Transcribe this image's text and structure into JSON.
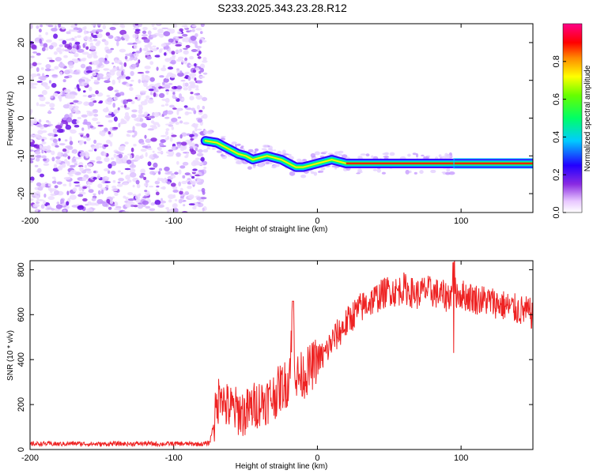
{
  "title": "S233.2025.343.23.28.R12",
  "chart_data": [
    {
      "type": "heatmap",
      "xlabel": "Height of straight line (km)",
      "ylabel": "Frequency (Hz)",
      "xlim": [
        -200,
        150
      ],
      "ylim": [
        -25,
        25
      ],
      "x_ticks": [
        -200,
        -100,
        0,
        100
      ],
      "x_tick_labels": [
        "-200",
        "-100",
        "0",
        "100"
      ],
      "y_ticks": [
        -20,
        -10,
        0,
        10,
        20
      ],
      "y_tick_labels": [
        "-20",
        "-10",
        "0",
        "10",
        "20"
      ],
      "noise_region_x": [
        -200,
        -78
      ],
      "signal_track": {
        "x": [
          -78,
          -70,
          -65,
          -60,
          -55,
          -50,
          -45,
          -40,
          -35,
          -30,
          -25,
          -20,
          -15,
          -10,
          -5,
          0,
          5,
          10,
          15,
          20,
          30,
          40,
          50,
          60,
          70,
          80,
          90,
          95,
          150
        ],
        "frequency": [
          -6,
          -6.5,
          -7.5,
          -8.5,
          -9.5,
          -10,
          -11,
          -10.5,
          -10,
          -10.5,
          -11,
          -12,
          -13,
          -13,
          -12.5,
          -12,
          -11.5,
          -11,
          -11.5,
          -12,
          -12,
          -12,
          -12,
          -12,
          -12,
          -12,
          -12,
          -12,
          -12
        ]
      },
      "colorbar": {
        "label": "Normalized spectral amplitude",
        "range": [
          0,
          1
        ],
        "ticks": [
          0.0,
          0.2,
          0.4,
          0.6,
          0.8
        ],
        "tick_labels": [
          "0.0",
          "0.2",
          "0.4",
          "0.6",
          "0.8"
        ]
      }
    },
    {
      "type": "line",
      "xlabel": "Height of straight line (km)",
      "ylabel": "SNR (10 * v/v)",
      "xlim": [
        -200,
        150
      ],
      "ylim": [
        0,
        840
      ],
      "x_ticks": [
        -200,
        -100,
        0,
        100
      ],
      "x_tick_labels": [
        "-200",
        "-100",
        "0",
        "100"
      ],
      "y_ticks": [
        0,
        200,
        400,
        600,
        800
      ],
      "y_tick_labels": [
        "0",
        "200",
        "400",
        "600",
        "800"
      ],
      "color": "#ee2222",
      "series": [
        {
          "name": "SNR",
          "x": [
            -200,
            -190,
            -180,
            -170,
            -160,
            -150,
            -140,
            -130,
            -120,
            -110,
            -100,
            -90,
            -80,
            -75,
            -70,
            -67,
            -65,
            -60,
            -55,
            -50,
            -45,
            -40,
            -35,
            -30,
            -25,
            -20,
            -17,
            -15,
            -10,
            -5,
            0,
            5,
            10,
            15,
            20,
            25,
            30,
            35,
            40,
            45,
            50,
            55,
            60,
            65,
            70,
            75,
            80,
            85,
            90,
            95,
            100,
            105,
            110,
            115,
            120,
            125,
            130,
            135,
            140,
            145,
            150
          ],
          "values": [
            25,
            26,
            24,
            27,
            25,
            24,
            26,
            25,
            27,
            24,
            26,
            25,
            24,
            30,
            180,
            290,
            200,
            180,
            170,
            160,
            190,
            210,
            220,
            240,
            280,
            300,
            600,
            320,
            330,
            360,
            400,
            420,
            480,
            520,
            560,
            600,
            630,
            650,
            670,
            690,
            710,
            700,
            720,
            700,
            690,
            710,
            700,
            690,
            680,
            700,
            690,
            680,
            670,
            665,
            660,
            650,
            640,
            630,
            620,
            615,
            600
          ]
        }
      ]
    }
  ]
}
